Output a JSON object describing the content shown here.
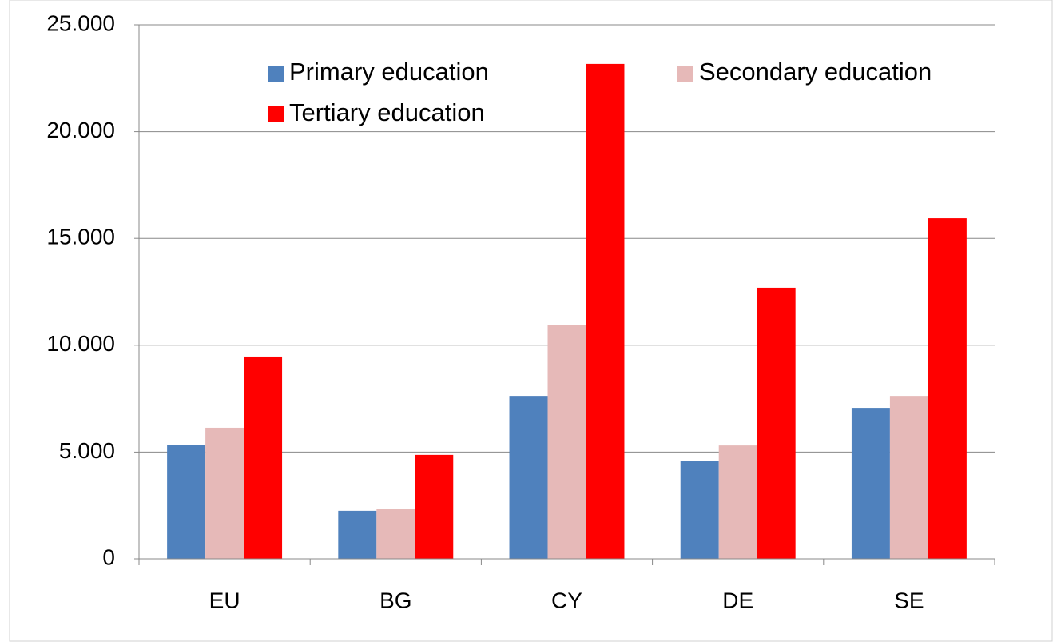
{
  "chart_data": {
    "type": "bar",
    "categories": [
      "EU",
      "BG",
      "CY",
      "DE",
      "SE"
    ],
    "series": [
      {
        "name": "Primary education",
        "color": "#4f81bd",
        "values": [
          5350,
          2250,
          7630,
          4600,
          7070
        ]
      },
      {
        "name": "Secondary education",
        "color": "#e6b9b8",
        "values": [
          6140,
          2320,
          10930,
          5310,
          7630
        ]
      },
      {
        "name": "Tertiary education",
        "color": "#ff0000",
        "values": [
          9470,
          4870,
          23170,
          12690,
          15940
        ]
      }
    ],
    "ylim": [
      0,
      25000
    ],
    "yticks": [
      0,
      {
        "value": 5000,
        "label": "5.000"
      },
      {
        "value": 10000,
        "label": "10.000"
      },
      {
        "value": 15000,
        "label": "15.000"
      },
      {
        "value": 20000,
        "label": "20.000"
      },
      {
        "value": 25000,
        "label": "25.000"
      }
    ],
    "grid": true
  }
}
